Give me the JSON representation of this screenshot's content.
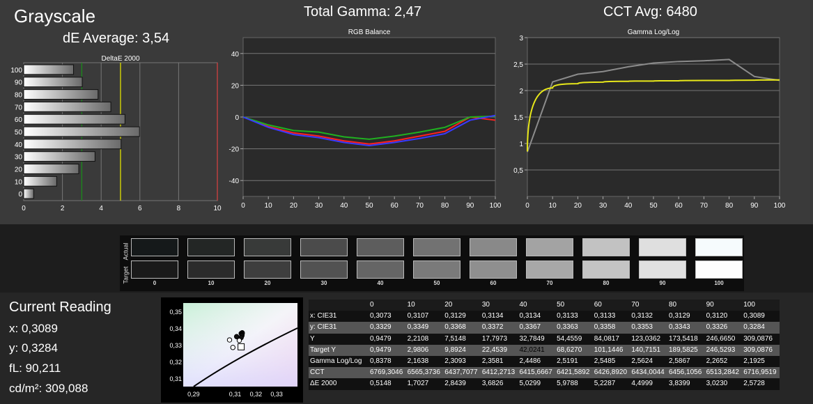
{
  "titles": {
    "grayscale": "Grayscale",
    "de_average": "dE Average: 3,54",
    "total_gamma": "Total Gamma: 2,47",
    "cct_avg": "CCT Avg: 6480"
  },
  "chart_data": [
    {
      "type": "bar",
      "orientation": "horizontal",
      "title": "DeltaE 2000",
      "categories": [
        "0",
        "10",
        "20",
        "30",
        "40",
        "50",
        "60",
        "70",
        "80",
        "90",
        "100"
      ],
      "values": [
        0.5148,
        1.7027,
        2.8439,
        3.6826,
        5.0299,
        5.9788,
        5.2287,
        4.4999,
        3.8399,
        3.023,
        2.5728
      ],
      "xlim": [
        0,
        10
      ],
      "xticks": [
        "0",
        "2",
        "4",
        "6",
        "8",
        "10"
      ],
      "reference_lines": [
        {
          "value": 3,
          "color": "#1a8a1a"
        },
        {
          "value": 5,
          "color": "#e0e000"
        },
        {
          "value": 10,
          "color": "#d04040"
        }
      ],
      "grid": true
    },
    {
      "type": "line",
      "title": "RGB Balance",
      "x": [
        0,
        10,
        20,
        30,
        40,
        50,
        60,
        70,
        80,
        90,
        100
      ],
      "xticks": [
        "0",
        "10",
        "20",
        "30",
        "40",
        "50",
        "60",
        "70",
        "80",
        "90",
        "100"
      ],
      "yticks": [
        "40",
        "20",
        "0",
        "-20",
        "-40"
      ],
      "ylim": [
        -50,
        50
      ],
      "series": [
        {
          "color": "#ff2020",
          "values": [
            0,
            -6,
            -10,
            -12,
            -15,
            -17,
            -15,
            -12,
            -9,
            0,
            -2
          ]
        },
        {
          "color": "#20b020",
          "values": [
            0,
            -5,
            -8.5,
            -9.5,
            -12.5,
            -14,
            -12,
            -9.5,
            -6.5,
            0,
            0.5
          ]
        },
        {
          "color": "#3a3aff",
          "values": [
            0,
            -6.5,
            -11,
            -13,
            -16,
            -18,
            -16,
            -13.5,
            -10.5,
            -2,
            1
          ]
        }
      ],
      "grid": true
    },
    {
      "type": "line",
      "title": "Gamma Log/Log",
      "x": [
        0,
        10,
        20,
        30,
        40,
        50,
        60,
        70,
        80,
        90,
        100
      ],
      "xticks": [
        "0",
        "10",
        "20",
        "30",
        "40",
        "50",
        "60",
        "70",
        "80",
        "90",
        "100"
      ],
      "yticks": [
        "3",
        "2,5",
        "2",
        "1,5",
        "1",
        "0,5"
      ],
      "ylim": [
        0,
        3
      ],
      "series": [
        {
          "color": "#8c8c8c",
          "values": [
            0.8378,
            2.1638,
            2.3093,
            2.3581,
            2.4486,
            2.5191,
            2.5485,
            2.5624,
            2.5867,
            2.2652,
            2.1925
          ]
        },
        {
          "color": "#e8e81a",
          "target": true,
          "values": [
            0.85,
            2.05,
            2.13,
            2.16,
            2.175,
            2.18,
            2.185,
            2.19,
            2.19,
            2.195,
            2.2
          ]
        }
      ],
      "grid": true
    },
    {
      "type": "scatter",
      "title": "",
      "xlim": [
        0.285,
        0.34
      ],
      "ylim": [
        0.305,
        0.355
      ],
      "xticks": [
        "0,29",
        "0,31",
        "0,32",
        "0,33"
      ],
      "yticks": [
        "0,35",
        "0,34",
        "0,33",
        "0,32",
        "0,31"
      ],
      "points": [
        {
          "x": 0.3073,
          "y": 0.3329
        },
        {
          "x": 0.3107,
          "y": 0.3349
        },
        {
          "x": 0.3129,
          "y": 0.3368
        },
        {
          "x": 0.3134,
          "y": 0.3372
        },
        {
          "x": 0.3134,
          "y": 0.3367
        },
        {
          "x": 0.3133,
          "y": 0.3363
        },
        {
          "x": 0.3133,
          "y": 0.3358
        },
        {
          "x": 0.3132,
          "y": 0.3353
        },
        {
          "x": 0.3129,
          "y": 0.3343
        },
        {
          "x": 0.312,
          "y": 0.3326
        },
        {
          "x": 0.3089,
          "y": 0.3284
        }
      ],
      "target": {
        "x": 0.3127,
        "y": 0.329
      }
    }
  ],
  "swatches": {
    "actual_label": "Actual",
    "target_label": "Target",
    "labels": [
      "0",
      "10",
      "20",
      "30",
      "40",
      "50",
      "60",
      "70",
      "80",
      "90",
      "100"
    ],
    "actual": [
      "#15191a",
      "#232625",
      "#383a39",
      "#4b4b4b",
      "#5d5d5d",
      "#727272",
      "#898989",
      "#a3a3a3",
      "#c2c2c2",
      "#dfdfdf",
      "#f6fbfd"
    ],
    "target": [
      "#1a1a1a",
      "#2b2b2b",
      "#3e3e3e",
      "#525252",
      "#656565",
      "#7a7a7a",
      "#8f8f8f",
      "#a8a8a8",
      "#c4c4c4",
      "#e0e0e0",
      "#fdfdfd"
    ]
  },
  "current_reading": {
    "title": "Current Reading",
    "x": "x: 0,3089",
    "y": "y: 0,3284",
    "fl": "fL: 90,211",
    "cdm2": "cd/m²: 309,088"
  },
  "table": {
    "columns": [
      "0",
      "10",
      "20",
      "30",
      "40",
      "50",
      "60",
      "70",
      "80",
      "90",
      "100"
    ],
    "rows": [
      {
        "label": "x: CIE31",
        "values": [
          "0,3073",
          "0,3107",
          "0,3129",
          "0,3134",
          "0,3134",
          "0,3133",
          "0,3133",
          "0,3132",
          "0,3129",
          "0,3120",
          "0,3089"
        ]
      },
      {
        "label": "y: CIE31",
        "values": [
          "0,3329",
          "0,3349",
          "0,3368",
          "0,3372",
          "0,3367",
          "0,3363",
          "0,3358",
          "0,3353",
          "0,3343",
          "0,3326",
          "0,3284"
        ]
      },
      {
        "label": "Y",
        "values": [
          "0,9479",
          "2,2108",
          "7,5148",
          "17,7973",
          "32,7849",
          "54,4559",
          "84,0817",
          "123,0362",
          "173,5418",
          "246,6650",
          "309,0876"
        ]
      },
      {
        "label": "Target Y",
        "values": [
          "0,9479",
          "2,9806",
          "9,8924",
          "22,4539",
          "42,0241",
          "68,6270",
          "101,1446",
          "140,7151",
          "189,5825",
          "246,5293",
          "309,0876"
        ]
      },
      {
        "label": "Gamma Log/Log",
        "values": [
          "0,8378",
          "2,1638",
          "2,3093",
          "2,3581",
          "2,4486",
          "2,5191",
          "2,5485",
          "2,5624",
          "2,5867",
          "2,2652",
          "2,1925"
        ]
      },
      {
        "label": "CCT",
        "values": [
          "6769,3046",
          "6565,3736",
          "6437,7077",
          "6412,2713",
          "6415,6667",
          "6421,5892",
          "6426,8920",
          "6434,0044",
          "6456,1056",
          "6513,2842",
          "6716,9519"
        ]
      },
      {
        "label": "ΔE 2000",
        "values": [
          "0,5148",
          "1,7027",
          "2,8439",
          "3,6826",
          "5,0299",
          "5,9788",
          "5,2287",
          "4,4999",
          "3,8399",
          "3,0230",
          "2,5728"
        ]
      }
    ]
  }
}
